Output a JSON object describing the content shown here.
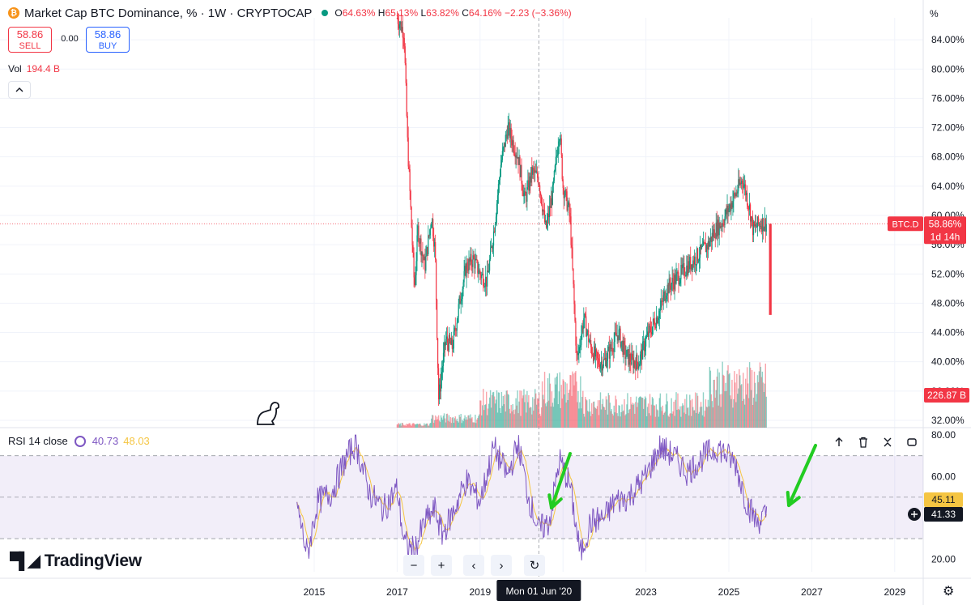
{
  "header": {
    "title": "Market Cap BTC Dominance, % · 1W · CRYPTOCAP",
    "ohlc_o_label": "O",
    "ohlc_o": "64.63%",
    "ohlc_h_label": "H",
    "ohlc_h": "65.13%",
    "ohlc_l_label": "L",
    "ohlc_l": "63.82%",
    "ohlc_c_label": "C",
    "ohlc_c": "64.16%",
    "change": "−2.23 (−3.36%)"
  },
  "trade": {
    "sell_value": "58.86",
    "sell_label": "SELL",
    "spread": "0.00",
    "buy_value": "58.86",
    "buy_label": "BUY"
  },
  "volume": {
    "label": "Vol",
    "value": "194.4 B"
  },
  "rsi": {
    "label": "RSI 14 close",
    "value": "40.73",
    "ma_value": "48.03"
  },
  "branding": {
    "logo_text": "TradingView"
  },
  "price_scale_unit": "%",
  "crosshair": {
    "date_label": "Mon 01 Jun '20"
  },
  "badges": {
    "symbol": "BTC.D",
    "price": "58.86%",
    "countdown": "1d 14h",
    "volume": "226.87 B",
    "rsi_ma": "45.11",
    "rsi": "41.33"
  },
  "colors": {
    "up": "#089981",
    "down": "#f23645",
    "rsi_line": "#7e57c2",
    "rsi_ma": "#f5c542",
    "annotation_arrow": "#22cc22"
  },
  "chart_data": {
    "type": "candlestick",
    "x_tick_labels": [
      "2015",
      "2017",
      "2019",
      "2021",
      "2023",
      "2025",
      "2027",
      "2029"
    ],
    "y_tick_labels": [
      "32.00%",
      "36.00%",
      "40.00%",
      "44.00%",
      "48.00%",
      "52.00%",
      "56.00%",
      "60.00%",
      "64.00%",
      "68.00%",
      "72.00%",
      "76.00%",
      "80.00%",
      "84.00%"
    ],
    "ylim": [
      31,
      87
    ],
    "price_path": [
      [
        "2017-01",
        87.0
      ],
      [
        "2017-03",
        85.0
      ],
      [
        "2017-04",
        70.0
      ],
      [
        "2017-05",
        60.0
      ],
      [
        "2017-06",
        50.0
      ],
      [
        "2017-07",
        58.0
      ],
      [
        "2017-09",
        53.0
      ],
      [
        "2017-11",
        60.0
      ],
      [
        "2017-12",
        55.0
      ],
      [
        "2018-01",
        35.0
      ],
      [
        "2018-03",
        43.0
      ],
      [
        "2018-05",
        42.0
      ],
      [
        "2018-07",
        48.0
      ],
      [
        "2018-09",
        53.0
      ],
      [
        "2018-11",
        54.0
      ],
      [
        "2019-01",
        52.0
      ],
      [
        "2019-03",
        51.0
      ],
      [
        "2019-05",
        58.0
      ],
      [
        "2019-07",
        67.0
      ],
      [
        "2019-09",
        72.0
      ],
      [
        "2019-12",
        68.0
      ],
      [
        "2020-02",
        62.0
      ],
      [
        "2020-04",
        66.0
      ],
      [
        "2020-06",
        65.0
      ],
      [
        "2020-08",
        58.0
      ],
      [
        "2020-10",
        63.0
      ],
      [
        "2020-12",
        72.0
      ],
      [
        "2021-01",
        64.0
      ],
      [
        "2021-03",
        60.0
      ],
      [
        "2021-05",
        40.0
      ],
      [
        "2021-07",
        46.0
      ],
      [
        "2021-09",
        42.0
      ],
      [
        "2021-11",
        40.0
      ],
      [
        "2022-01",
        40.0
      ],
      [
        "2022-03",
        42.0
      ],
      [
        "2022-05",
        44.0
      ],
      [
        "2022-07",
        41.0
      ],
      [
        "2022-09",
        40.0
      ],
      [
        "2022-11",
        40.0
      ],
      [
        "2023-01",
        43.0
      ],
      [
        "2023-03",
        45.0
      ],
      [
        "2023-05",
        47.0
      ],
      [
        "2023-07",
        50.0
      ],
      [
        "2023-09",
        51.0
      ],
      [
        "2023-11",
        52.0
      ],
      [
        "2024-01",
        53.0
      ],
      [
        "2024-03",
        54.0
      ],
      [
        "2024-05",
        55.0
      ],
      [
        "2024-07",
        56.0
      ],
      [
        "2024-09",
        58.0
      ],
      [
        "2024-11",
        59.0
      ],
      [
        "2025-01",
        61.0
      ],
      [
        "2025-03",
        63.0
      ],
      [
        "2025-05",
        65.0
      ],
      [
        "2025-07",
        61.0
      ],
      [
        "2025-08",
        58.0
      ],
      [
        "2025-10",
        59.0
      ],
      [
        "2025-12",
        58.86
      ]
    ],
    "last_candle": {
      "date": "2026-01",
      "open": 58.86,
      "close": 46.4
    },
    "rsi_ylim": [
      14,
      82
    ],
    "rsi_tick_labels": [
      "20.00",
      "40.00",
      "60.00",
      "80.00"
    ],
    "rsi_band": [
      30,
      70
    ],
    "rsi_midline": 50,
    "rsi_path": [
      [
        "2014-08",
        46
      ],
      [
        "2014-11",
        22
      ],
      [
        "2015-02",
        48
      ],
      [
        "2015-06",
        52
      ],
      [
        "2015-10",
        68
      ],
      [
        "2016-01",
        76
      ],
      [
        "2016-05",
        52
      ],
      [
        "2016-09",
        44
      ],
      [
        "2017-01",
        54
      ],
      [
        "2017-03",
        28
      ],
      [
        "2017-06",
        24
      ],
      [
        "2017-09",
        38
      ],
      [
        "2017-12",
        44
      ],
      [
        "2018-02",
        32
      ],
      [
        "2018-05",
        42
      ],
      [
        "2018-09",
        58
      ],
      [
        "2019-01",
        48
      ],
      [
        "2019-05",
        74
      ],
      [
        "2019-09",
        60
      ],
      [
        "2019-12",
        76
      ],
      [
        "2020-03",
        50
      ],
      [
        "2020-06",
        34
      ],
      [
        "2020-09",
        38
      ],
      [
        "2020-12",
        68
      ],
      [
        "2021-03",
        56
      ],
      [
        "2021-06",
        22
      ],
      [
        "2021-09",
        38
      ],
      [
        "2022-01",
        40
      ],
      [
        "2022-04",
        48
      ],
      [
        "2022-08",
        50
      ],
      [
        "2023-01",
        60
      ],
      [
        "2023-05",
        74
      ],
      [
        "2023-09",
        70
      ],
      [
        "2024-01",
        62
      ],
      [
        "2024-06",
        70
      ],
      [
        "2024-10",
        74
      ],
      [
        "2025-03",
        66
      ],
      [
        "2025-06",
        48
      ],
      [
        "2025-09",
        38
      ],
      [
        "2025-12",
        41.33
      ]
    ]
  }
}
